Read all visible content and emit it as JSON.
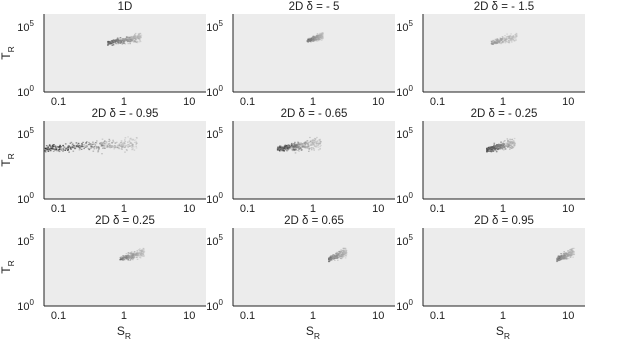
{
  "figure": {
    "x_axis_label": "S",
    "x_axis_label_sub": "R",
    "y_axis_label": "T",
    "y_axis_label_sub": "R"
  },
  "colors": {
    "panel_background": "#ececec",
    "axis_line": "#222222",
    "density_dark": "#1a1a1a",
    "density_light": "#bdbdbd"
  },
  "chart_data": [
    {
      "type": "heatmap",
      "title": "1D",
      "x_scale": "log",
      "y_scale": "log",
      "xlim": [
        0.06,
        18
      ],
      "ylim": [
        1,
        1000000
      ],
      "x_ticks": [
        "0.1",
        "1",
        "10"
      ],
      "y_ticks": [
        {
          "base": "10",
          "exp": "0"
        },
        {
          "base": "10",
          "exp": "5"
        }
      ],
      "cluster": {
        "x_range": [
          0.55,
          1.8
        ],
        "y_range": [
          1200,
          35000
        ],
        "intensity": 0.75,
        "slope": -1.0
      }
    },
    {
      "type": "heatmap",
      "title": "2D δ = - 5",
      "x_scale": "log",
      "y_scale": "log",
      "xlim": [
        0.06,
        18
      ],
      "ylim": [
        1,
        1000000
      ],
      "x_ticks": [
        "0.1",
        "1",
        "10"
      ],
      "y_ticks": [
        {
          "base": "10",
          "exp": "0"
        },
        {
          "base": "10",
          "exp": "5"
        }
      ],
      "cluster": {
        "x_range": [
          0.8,
          1.4
        ],
        "y_range": [
          2500,
          40000
        ],
        "intensity": 0.55,
        "slope": -1.2
      }
    },
    {
      "type": "heatmap",
      "title": "2D δ = - 1.5",
      "x_scale": "log",
      "y_scale": "log",
      "xlim": [
        0.06,
        18
      ],
      "ylim": [
        1,
        1000000
      ],
      "x_ticks": [
        "0.1",
        "1",
        "10"
      ],
      "y_ticks": [
        {
          "base": "10",
          "exp": "0"
        },
        {
          "base": "10",
          "exp": "5"
        }
      ],
      "cluster": {
        "x_range": [
          0.65,
          1.6
        ],
        "y_range": [
          1500,
          35000
        ],
        "intensity": 0.35,
        "slope": -1.1
      }
    },
    {
      "type": "heatmap",
      "title": "2D δ = - 0.95",
      "x_scale": "log",
      "y_scale": "log",
      "xlim": [
        0.06,
        18
      ],
      "ylim": [
        1,
        1000000
      ],
      "x_ticks": [
        "0.1",
        "1",
        "10"
      ],
      "y_ticks": [
        {
          "base": "10",
          "exp": "0"
        },
        {
          "base": "10",
          "exp": "5"
        }
      ],
      "cluster": {
        "x_range": [
          0.06,
          1.6
        ],
        "y_range": [
          500,
          80000
        ],
        "intensity": 0.95,
        "slope": -0.6
      }
    },
    {
      "type": "heatmap",
      "title": "2D δ = - 0.65",
      "x_scale": "log",
      "y_scale": "log",
      "xlim": [
        0.06,
        18
      ],
      "ylim": [
        1,
        1000000
      ],
      "x_ticks": [
        "0.1",
        "1",
        "10"
      ],
      "y_ticks": [
        {
          "base": "10",
          "exp": "0"
        },
        {
          "base": "10",
          "exp": "5"
        }
      ],
      "cluster": {
        "x_range": [
          0.28,
          1.3
        ],
        "y_range": [
          800,
          60000
        ],
        "intensity": 0.85,
        "slope": -0.8
      }
    },
    {
      "type": "heatmap",
      "title": "2D δ = - 0.25",
      "x_scale": "log",
      "y_scale": "log",
      "xlim": [
        0.06,
        18
      ],
      "ylim": [
        1,
        1000000
      ],
      "x_ticks": [
        "0.1",
        "1",
        "10"
      ],
      "y_ticks": [
        {
          "base": "10",
          "exp": "0"
        },
        {
          "base": "10",
          "exp": "5"
        }
      ],
      "cluster": {
        "x_range": [
          0.55,
          1.5
        ],
        "y_range": [
          1000,
          50000
        ],
        "intensity": 0.85,
        "slope": -1.0
      }
    },
    {
      "type": "heatmap",
      "title": "2D δ = 0.25",
      "x_scale": "log",
      "y_scale": "log",
      "xlim": [
        0.06,
        18
      ],
      "ylim": [
        1,
        1000000
      ],
      "x_ticks": [
        "0.1",
        "1",
        "10"
      ],
      "y_ticks": [
        {
          "base": "10",
          "exp": "0"
        },
        {
          "base": "10",
          "exp": "5"
        }
      ],
      "cluster": {
        "x_range": [
          0.85,
          2.0
        ],
        "y_range": [
          800,
          30000
        ],
        "intensity": 0.55,
        "slope": -1.1
      }
    },
    {
      "type": "heatmap",
      "title": "2D δ = 0.65",
      "x_scale": "log",
      "y_scale": "log",
      "xlim": [
        0.06,
        18
      ],
      "ylim": [
        1,
        1000000
      ],
      "x_ticks": [
        "0.1",
        "1",
        "10"
      ],
      "y_ticks": [
        {
          "base": "10",
          "exp": "0"
        },
        {
          "base": "10",
          "exp": "5"
        }
      ],
      "cluster": {
        "x_range": [
          1.7,
          3.2
        ],
        "y_range": [
          800,
          30000
        ],
        "intensity": 0.55,
        "slope": -1.2
      }
    },
    {
      "type": "heatmap",
      "title": "2D δ = 0.95",
      "x_scale": "log",
      "y_scale": "log",
      "xlim": [
        0.06,
        18
      ],
      "ylim": [
        1,
        1000000
      ],
      "x_ticks": [
        "0.1",
        "1",
        "10"
      ],
      "y_ticks": [
        {
          "base": "10",
          "exp": "0"
        },
        {
          "base": "10",
          "exp": "5"
        }
      ],
      "cluster": {
        "x_range": [
          6.5,
          12
        ],
        "y_range": [
          800,
          30000
        ],
        "intensity": 0.55,
        "slope": -1.2
      }
    }
  ]
}
